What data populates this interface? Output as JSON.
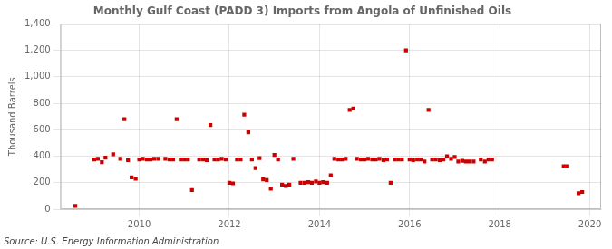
{
  "chart_data": {
    "type": "scatter",
    "title": "Monthly Gulf Coast (PADD 3) Imports from Angola of Unfinished Oils",
    "ylabel": "Thousand Barrels",
    "annotations": [
      "Source: U.S. Energy Information Administration"
    ],
    "color": "#cc0000",
    "marker": "square",
    "grid": true,
    "xlim": [
      2008.25,
      2020.25
    ],
    "xticks": [
      2010,
      2012,
      2014,
      2016,
      2018,
      2020
    ],
    "ylim": [
      0,
      1400
    ],
    "yticks": [
      0,
      200,
      400,
      600,
      800,
      {
        "value": 1000,
        "label": "1,000"
      },
      {
        "value": 1200,
        "label": "1,200"
      },
      {
        "value": 1400,
        "label": "1,400"
      }
    ],
    "x": [
      2008.58,
      2009.0,
      2009.08,
      2009.17,
      2009.25,
      2009.42,
      2009.58,
      2009.67,
      2009.75,
      2009.83,
      2009.92,
      2010.0,
      2010.08,
      2010.17,
      2010.25,
      2010.33,
      2010.42,
      2010.58,
      2010.67,
      2010.75,
      2010.83,
      2010.92,
      2011.0,
      2011.08,
      2011.17,
      2011.33,
      2011.42,
      2011.5,
      2011.58,
      2011.67,
      2011.75,
      2011.83,
      2011.92,
      2012.0,
      2012.08,
      2012.17,
      2012.25,
      2012.33,
      2012.42,
      2012.5,
      2012.58,
      2012.67,
      2012.75,
      2012.83,
      2012.92,
      2013.0,
      2013.08,
      2013.17,
      2013.25,
      2013.33,
      2013.42,
      2013.58,
      2013.67,
      2013.75,
      2013.83,
      2013.92,
      2014.0,
      2014.08,
      2014.17,
      2014.25,
      2014.33,
      2014.42,
      2014.5,
      2014.58,
      2014.67,
      2014.75,
      2014.83,
      2014.92,
      2015.0,
      2015.08,
      2015.17,
      2015.25,
      2015.33,
      2015.42,
      2015.5,
      2015.58,
      2015.67,
      2015.75,
      2015.83,
      2015.92,
      2016.0,
      2016.08,
      2016.17,
      2016.25,
      2016.33,
      2016.42,
      2016.5,
      2016.58,
      2016.67,
      2016.75,
      2016.83,
      2016.92,
      2017.0,
      2017.08,
      2017.17,
      2017.25,
      2017.33,
      2017.42,
      2017.58,
      2017.67,
      2017.75,
      2017.83,
      2019.42,
      2019.5,
      2019.75,
      2019.83
    ],
    "values": [
      25,
      375,
      380,
      355,
      390,
      415,
      380,
      680,
      370,
      240,
      230,
      375,
      380,
      375,
      375,
      380,
      380,
      380,
      375,
      375,
      680,
      375,
      375,
      375,
      145,
      375,
      375,
      370,
      635,
      375,
      375,
      380,
      375,
      200,
      195,
      375,
      375,
      715,
      580,
      375,
      310,
      385,
      225,
      220,
      155,
      410,
      375,
      185,
      175,
      185,
      380,
      200,
      200,
      205,
      200,
      210,
      200,
      205,
      200,
      255,
      380,
      375,
      375,
      380,
      750,
      760,
      380,
      375,
      375,
      380,
      375,
      375,
      380,
      370,
      375,
      200,
      375,
      375,
      375,
      1200,
      375,
      370,
      375,
      375,
      360,
      750,
      375,
      375,
      370,
      375,
      400,
      380,
      395,
      360,
      365,
      360,
      360,
      360,
      375,
      360,
      375,
      375,
      325,
      325,
      120,
      130
    ]
  }
}
